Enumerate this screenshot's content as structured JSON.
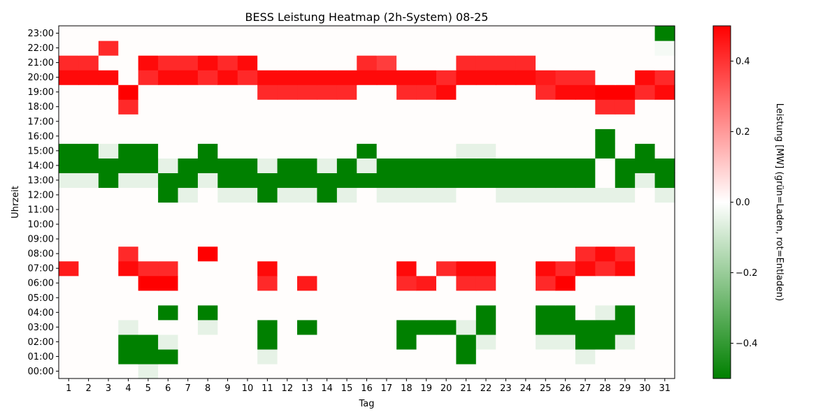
{
  "chart_data": {
    "type": "heatmap",
    "title": "BESS Leistung Heatmap (2h-System) 08-25",
    "xlabel": "Tag",
    "ylabel": "Uhrzeit",
    "colorbar_label": "Leistung [MW] (grün=Laden, rot=Entladen)",
    "x_categories": [
      "1",
      "2",
      "3",
      "4",
      "5",
      "6",
      "7",
      "8",
      "9",
      "10",
      "11",
      "12",
      "13",
      "14",
      "15",
      "16",
      "17",
      "18",
      "19",
      "20",
      "21",
      "22",
      "23",
      "24",
      "25",
      "26",
      "27",
      "28",
      "29",
      "30",
      "31"
    ],
    "y_categories": [
      "00:00",
      "01:00",
      "02:00",
      "03:00",
      "04:00",
      "05:00",
      "06:00",
      "07:00",
      "08:00",
      "09:00",
      "10:00",
      "11:00",
      "12:00",
      "13:00",
      "14:00",
      "15:00",
      "16:00",
      "17:00",
      "18:00",
      "19:00",
      "20:00",
      "21:00",
      "22:00",
      "23:00"
    ],
    "value_range": [
      -0.5,
      0.5
    ],
    "colorbar_ticks": [
      {
        "value": -0.4,
        "label": "−0.4"
      },
      {
        "value": -0.2,
        "label": "−0.2"
      },
      {
        "value": 0.0,
        "label": "0.0"
      },
      {
        "value": 0.2,
        "label": "0.2"
      },
      {
        "value": 0.4,
        "label": "0.4"
      }
    ],
    "colormap": {
      "negative": "#008000",
      "zero": "#ffffff",
      "positive": "#ff0000"
    },
    "grid": false,
    "values": [
      [
        0,
        0,
        0,
        0,
        -0.05,
        0,
        0,
        0,
        0,
        0,
        0,
        0,
        0,
        0,
        0,
        0,
        0,
        0,
        0,
        0,
        0,
        0,
        0,
        0,
        0,
        0,
        0,
        0,
        0,
        0,
        0
      ],
      [
        0,
        0,
        0,
        -0.5,
        -0.5,
        -0.5,
        0,
        0,
        0,
        0,
        -0.05,
        0,
        0,
        0,
        0,
        0,
        0,
        0,
        0,
        0,
        -0.5,
        0,
        0,
        0,
        0,
        0,
        -0.05,
        0,
        0,
        0,
        0
      ],
      [
        0,
        0,
        0,
        -0.5,
        -0.5,
        -0.05,
        0,
        0,
        0,
        0,
        -0.5,
        0,
        0,
        0,
        0,
        0,
        0,
        -0.5,
        0,
        0,
        -0.5,
        -0.05,
        0,
        0,
        -0.05,
        -0.05,
        -0.5,
        -0.5,
        -0.05,
        0,
        0
      ],
      [
        0,
        0,
        0,
        -0.05,
        0,
        0,
        0,
        -0.05,
        0,
        0,
        -0.5,
        0,
        -0.5,
        0,
        0,
        0,
        0,
        -0.5,
        -0.5,
        -0.5,
        -0.05,
        -0.5,
        0,
        0,
        -0.5,
        -0.5,
        -0.5,
        -0.5,
        -0.5,
        0,
        0
      ],
      [
        0,
        0,
        0,
        0,
        0,
        -0.5,
        0,
        -0.5,
        0,
        0,
        0,
        0,
        0,
        0,
        0,
        0,
        0,
        0,
        0,
        0,
        0,
        -0.5,
        0,
        0,
        -0.5,
        -0.5,
        0,
        -0.05,
        -0.5,
        0,
        0
      ],
      [
        0,
        0,
        0,
        0,
        0,
        0,
        0,
        0,
        0,
        0,
        0,
        0,
        0,
        0,
        0,
        0,
        0,
        0,
        0,
        0,
        0,
        0,
        0,
        0,
        0,
        0,
        0,
        0,
        0,
        0,
        0
      ],
      [
        0,
        0,
        0,
        0,
        0.5,
        0.5,
        0,
        0,
        0,
        0,
        0.42,
        0,
        0.45,
        0,
        0,
        0,
        0,
        0.42,
        0.45,
        0,
        0.42,
        0.42,
        0,
        0,
        0.42,
        0.5,
        0,
        0,
        0,
        0,
        0
      ],
      [
        0.45,
        0,
        0,
        0.48,
        0.42,
        0.42,
        0,
        0,
        0,
        0,
        0.48,
        0,
        0,
        0,
        0,
        0,
        0,
        0.48,
        0,
        0.42,
        0.48,
        0.48,
        0,
        0,
        0.48,
        0.42,
        0.48,
        0.42,
        0.48,
        0,
        0
      ],
      [
        0,
        0,
        0,
        0.42,
        0,
        0,
        0,
        0.5,
        0,
        0,
        0,
        0,
        0,
        0,
        0,
        0,
        0,
        0,
        0,
        0,
        0,
        0,
        0,
        0,
        0,
        0,
        0.42,
        0.48,
        0.42,
        0,
        0
      ],
      [
        0,
        0,
        0,
        0,
        0,
        0,
        0,
        0,
        0,
        0,
        0,
        0,
        0,
        0,
        0,
        0,
        0,
        0,
        0,
        0,
        0,
        0,
        0,
        0,
        0,
        0,
        0,
        0,
        0,
        0,
        0
      ],
      [
        0,
        0,
        0,
        0,
        0,
        0,
        0,
        0,
        0,
        0,
        0,
        0,
        0,
        0,
        0,
        0,
        0,
        0,
        0,
        0,
        0,
        0,
        0,
        0,
        0,
        0,
        0,
        0,
        0,
        0,
        0
      ],
      [
        0,
        0,
        0,
        0,
        0,
        0,
        0,
        0,
        0,
        0,
        0,
        0,
        0,
        0,
        0,
        0,
        0,
        0,
        0,
        0,
        0,
        0,
        0,
        0,
        0,
        0,
        0,
        0,
        0,
        0,
        0
      ],
      [
        0,
        0,
        0,
        0,
        0,
        -0.5,
        -0.05,
        0,
        -0.05,
        -0.05,
        -0.5,
        -0.05,
        -0.05,
        -0.5,
        -0.05,
        0,
        -0.05,
        -0.05,
        -0.05,
        -0.05,
        0,
        0,
        -0.05,
        -0.05,
        -0.05,
        -0.05,
        -0.05,
        -0.05,
        -0.05,
        0,
        -0.05
      ],
      [
        -0.05,
        -0.05,
        -0.5,
        -0.05,
        -0.05,
        -0.5,
        -0.5,
        -0.05,
        -0.5,
        -0.5,
        -0.5,
        -0.5,
        -0.5,
        -0.5,
        -0.5,
        -0.5,
        -0.5,
        -0.5,
        -0.5,
        -0.5,
        -0.5,
        -0.5,
        -0.5,
        -0.5,
        -0.5,
        -0.5,
        -0.5,
        0,
        -0.5,
        -0.05,
        -0.5
      ],
      [
        -0.5,
        -0.5,
        -0.5,
        -0.5,
        -0.5,
        -0.05,
        -0.5,
        -0.5,
        -0.5,
        -0.5,
        -0.05,
        -0.5,
        -0.5,
        -0.05,
        -0.5,
        -0.05,
        -0.5,
        -0.5,
        -0.5,
        -0.5,
        -0.5,
        -0.5,
        -0.5,
        -0.5,
        -0.5,
        -0.5,
        -0.5,
        0,
        -0.5,
        -0.5,
        -0.5
      ],
      [
        -0.5,
        -0.5,
        -0.05,
        -0.5,
        -0.5,
        0,
        0,
        -0.5,
        0,
        0,
        0,
        0,
        0,
        0,
        0,
        -0.5,
        0,
        0,
        0,
        0,
        -0.05,
        -0.05,
        0,
        0,
        0,
        0,
        0,
        -0.5,
        0,
        -0.5,
        0
      ],
      [
        0,
        0,
        0,
        0,
        0,
        0,
        0,
        0,
        0,
        0,
        0,
        0,
        0,
        0,
        0,
        0,
        0,
        0,
        0,
        0,
        0,
        0,
        0,
        0,
        0,
        0,
        0,
        -0.5,
        0,
        0,
        0
      ],
      [
        0,
        0,
        0,
        0,
        0,
        0,
        0,
        0,
        0,
        0,
        0,
        0,
        0,
        0,
        0,
        0,
        0,
        0,
        0,
        0,
        0,
        0,
        0,
        0,
        0,
        0,
        0,
        0,
        0,
        0,
        0
      ],
      [
        0,
        0,
        0,
        0.42,
        0,
        0,
        0,
        0,
        0,
        0,
        0,
        0,
        0,
        0,
        0,
        0,
        0,
        0,
        0,
        0,
        0,
        0,
        0,
        0,
        0,
        0,
        0,
        0.42,
        0.42,
        0,
        0
      ],
      [
        0,
        0,
        0,
        0.5,
        0,
        0,
        0,
        0,
        0,
        0,
        0.42,
        0.42,
        0.42,
        0.42,
        0.42,
        0,
        0,
        0.42,
        0.42,
        0.48,
        0,
        0,
        0,
        0,
        0.42,
        0.48,
        0.48,
        0.5,
        0.5,
        0.42,
        0.48
      ],
      [
        0.48,
        0.48,
        0.48,
        0,
        0.42,
        0.48,
        0.48,
        0.42,
        0.48,
        0.42,
        0.48,
        0.48,
        0.48,
        0.48,
        0.48,
        0.48,
        0.48,
        0.48,
        0.48,
        0.42,
        0.48,
        0.48,
        0.48,
        0.48,
        0.45,
        0.42,
        0.42,
        0,
        0,
        0.48,
        0.42
      ],
      [
        0.42,
        0.42,
        0,
        0,
        0.48,
        0.42,
        0.42,
        0.48,
        0.42,
        0.48,
        0,
        0,
        0,
        0,
        0,
        0.42,
        0.38,
        0,
        0,
        0,
        0.42,
        0.42,
        0.42,
        0.42,
        0,
        0,
        0,
        0,
        0,
        0,
        0
      ],
      [
        0,
        0,
        0.42,
        0,
        0,
        0,
        0,
        0,
        0,
        0,
        0,
        0,
        0,
        0,
        0,
        0,
        0,
        0,
        0,
        0,
        0,
        0,
        0,
        0,
        0,
        0,
        0,
        0,
        0,
        0,
        -0.02
      ],
      [
        0,
        0,
        0,
        0,
        0,
        0,
        0,
        0,
        0,
        0,
        0,
        0,
        0,
        0,
        0,
        0,
        0,
        0,
        0,
        0,
        0,
        0,
        0,
        0,
        0,
        0,
        0,
        0,
        0,
        0,
        -0.5
      ]
    ]
  }
}
